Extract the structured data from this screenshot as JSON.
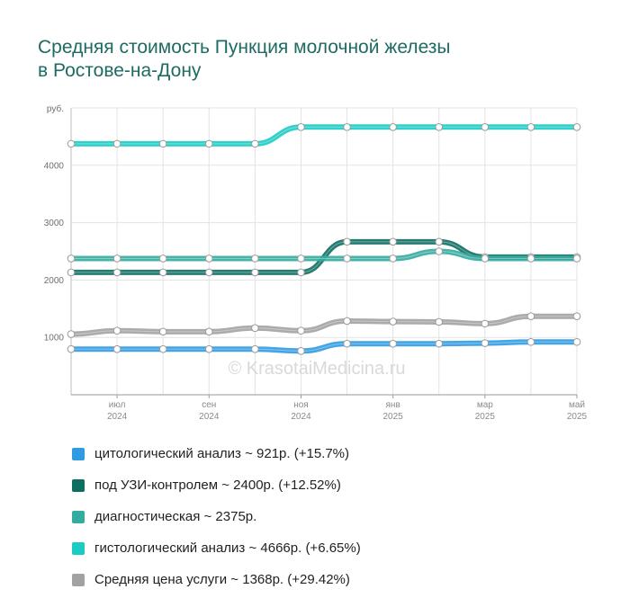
{
  "title": {
    "line1": "Средняя стоимость Пункция молочной железы",
    "line2": "в Ростове-на-Дону"
  },
  "watermark": "© KrasotaiMedicina.ru",
  "chart_data": {
    "type": "line",
    "ylabel": "руб.",
    "ylim": [
      0,
      5000
    ],
    "yticks": [
      1000,
      2000,
      3000,
      4000
    ],
    "grid": true,
    "x_ticks": [
      {
        "index": 1,
        "month": "июл",
        "year": "2024"
      },
      {
        "index": 3,
        "month": "сен",
        "year": "2024"
      },
      {
        "index": 5,
        "month": "ноя",
        "year": "2024"
      },
      {
        "index": 7,
        "month": "янв",
        "year": "2025"
      },
      {
        "index": 9,
        "month": "мар",
        "year": "2025"
      },
      {
        "index": 11,
        "month": "май",
        "year": "2025"
      }
    ],
    "x_count": 12,
    "series": [
      {
        "name": "цитологический анализ",
        "color": "#2f9be3",
        "values": [
          796,
          796,
          796,
          796,
          796,
          763,
          890,
          890,
          890,
          900,
          921,
          921
        ]
      },
      {
        "name": "под УЗИ-контролем",
        "color": "#0e6e62",
        "values": [
          2133,
          2133,
          2133,
          2133,
          2133,
          2133,
          2667,
          2667,
          2667,
          2400,
          2400,
          2400
        ]
      },
      {
        "name": "диагностическая",
        "color": "#34aca0",
        "values": [
          2375,
          2375,
          2375,
          2375,
          2375,
          2375,
          2375,
          2375,
          2500,
          2375,
          2375,
          2375
        ]
      },
      {
        "name": "гистологический анализ",
        "color": "#1ccbc4",
        "values": [
          4375,
          4375,
          4375,
          4375,
          4375,
          4666,
          4666,
          4666,
          4666,
          4666,
          4666,
          4666
        ]
      },
      {
        "name": "Средняя цена услуги",
        "color": "#a2a2a2",
        "values": [
          1057,
          1117,
          1100,
          1100,
          1163,
          1117,
          1286,
          1276,
          1270,
          1240,
          1368,
          1368
        ]
      }
    ]
  },
  "legend": [
    {
      "label": "цитологический анализ ~ 921р. (+15.7%)",
      "color": "#2f9be3"
    },
    {
      "label": "под УЗИ-контролем ~ 2400р. (+12.52%)",
      "color": "#0e6e62"
    },
    {
      "label": "диагностическая ~ 2375р.",
      "color": "#34aca0"
    },
    {
      "label": "гистологический анализ ~ 4666р. (+6.65%)",
      "color": "#1ccbc4"
    },
    {
      "label": "Средняя цена услуги ~ 1368р. (+29.42%)",
      "color": "#a2a2a2"
    }
  ]
}
